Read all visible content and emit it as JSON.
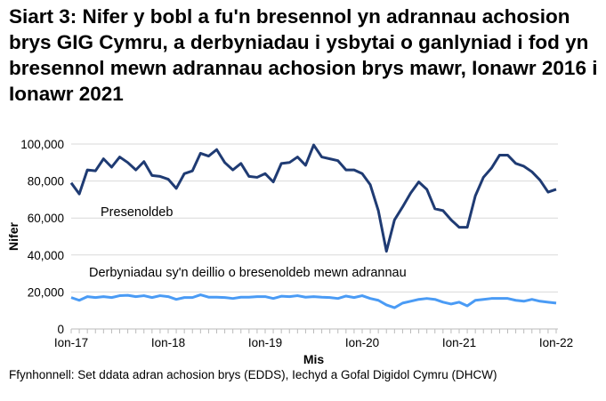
{
  "title": "Siart 3: Nifer y bobl a fu'n bresennol yn adrannau achosion brys GIG Cymru, a derbyniadau i ysbytai o ganlyniad i fod yn bresennol mewn adrannau achosion brys mawr, Ionawr 2016 i Ionawr 2021",
  "source": "Ffynhonnell: Set ddata adran achosion brys (EDDS), Iechyd a Gofal Digidol Cymru (DHCW)",
  "chart_data": {
    "type": "line",
    "xlabel": "Mis",
    "ylabel": "Nifer",
    "ylim": [
      0,
      100000
    ],
    "yticks": [
      "0",
      "20,000",
      "40,000",
      "60,000",
      "80,000",
      "100,000"
    ],
    "xticks": [
      "Ion-17",
      "Ion-18",
      "Ion-19",
      "Ion-20",
      "Ion-21",
      "Ion-22"
    ],
    "grid": true,
    "series": [
      {
        "name": "Presenoldeb",
        "color": "#1f3b73",
        "values": [
          79000,
          73000,
          86000,
          85500,
          92000,
          87500,
          93000,
          90000,
          86000,
          90500,
          83000,
          82500,
          81000,
          76000,
          84000,
          85500,
          95000,
          93500,
          97000,
          90000,
          86000,
          89500,
          82500,
          82000,
          84000,
          79500,
          89500,
          90000,
          93000,
          88500,
          99500,
          93000,
          92000,
          91000,
          86000,
          86000,
          84000,
          78000,
          64000,
          42000,
          59000,
          66000,
          73500,
          79500,
          75500,
          65000,
          64000,
          59000,
          55000,
          55000,
          72000,
          82000,
          87000,
          94000,
          94000,
          89500,
          88000,
          85000,
          80500,
          74000,
          75500
        ]
      },
      {
        "name": "Derbyniadau sy'n deillio o bresenoldeb mewn adrannau",
        "color": "#4a9bf5",
        "values": [
          17000,
          15500,
          17500,
          17000,
          17500,
          17000,
          18000,
          18200,
          17500,
          18000,
          17000,
          18000,
          17500,
          16000,
          17000,
          17000,
          18500,
          17200,
          17200,
          17000,
          16500,
          17200,
          17200,
          17500,
          17500,
          16500,
          17700,
          17500,
          18000,
          17200,
          17500,
          17200,
          17000,
          16500,
          17800,
          17000,
          18000,
          16500,
          15500,
          13000,
          11500,
          14000,
          15000,
          16000,
          16500,
          16000,
          14500,
          13500,
          14500,
          12500,
          15500,
          16000,
          16500,
          16500,
          16500,
          15500,
          15000,
          16000,
          15000,
          14500,
          14000
        ]
      }
    ]
  }
}
